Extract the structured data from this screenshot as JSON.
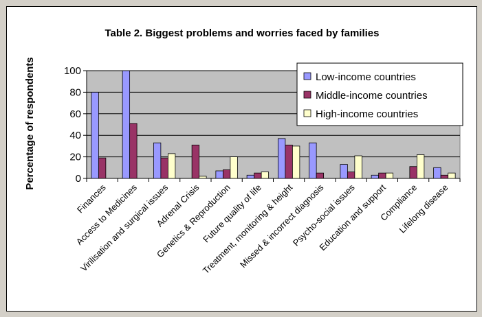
{
  "chart_data": {
    "type": "bar",
    "title": "Table 2. Biggest problems and worries faced by families",
    "ylabel": "Percentage of respondents",
    "xlabel": "",
    "ylim": [
      0,
      100
    ],
    "yticks": [
      0,
      20,
      40,
      60,
      80,
      100
    ],
    "grid": true,
    "legend_position": "top-right",
    "plot_background": "#c0c0c0",
    "categories": [
      "Finances",
      "Access to Medicines",
      "Virilisation and surgical issues",
      "Adrenal Crisis",
      "Genetics & Reproduction",
      "Future quality of life",
      "Treatment, monitoring & height",
      "Missed & incorrect diagnosis",
      "Psycho-social issues",
      "Education and support",
      "Compliance",
      "Lifelong disease"
    ],
    "series": [
      {
        "name": "Low-income countries",
        "color": "#9999ff",
        "values": [
          80,
          100,
          33,
          0,
          7,
          3,
          37,
          33,
          13,
          3,
          0,
          10
        ]
      },
      {
        "name": "Middle-income countries",
        "color": "#993366",
        "values": [
          19,
          51,
          19,
          31,
          8,
          5,
          31,
          5,
          6,
          5,
          11,
          3
        ]
      },
      {
        "name": "High-income countries",
        "color": "#ffffcc",
        "values": [
          0,
          0,
          23,
          2,
          20,
          6,
          30,
          0,
          21,
          5,
          22,
          5
        ]
      }
    ]
  }
}
